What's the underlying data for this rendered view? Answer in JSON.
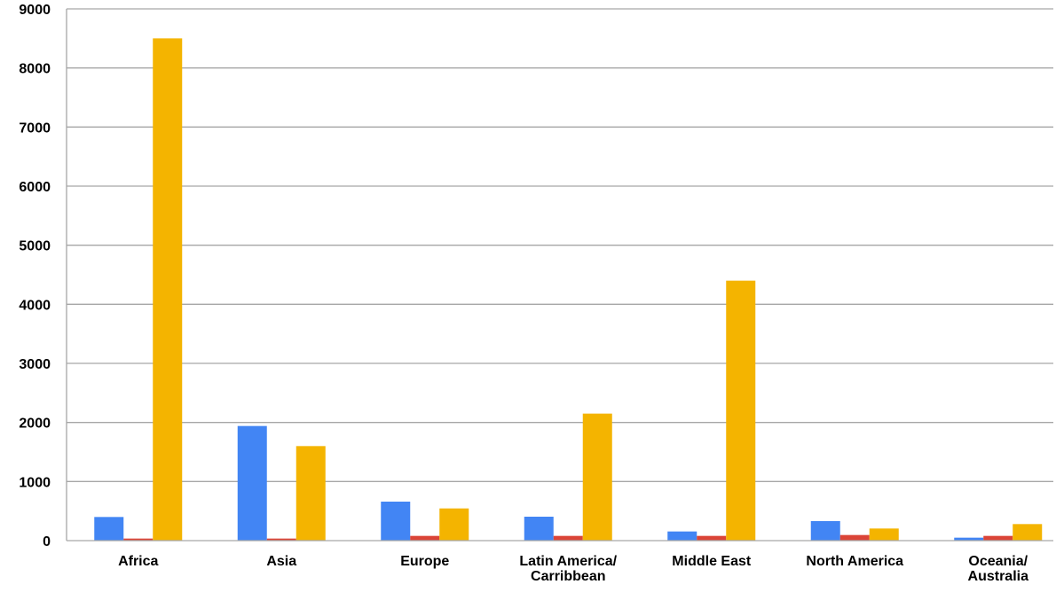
{
  "chart_data": {
    "type": "bar",
    "title": "",
    "xlabel": "",
    "ylabel": "",
    "ylim": [
      0,
      9000
    ],
    "yticks": [
      0,
      1000,
      2000,
      3000,
      4000,
      5000,
      6000,
      7000,
      8000,
      9000
    ],
    "grid": true,
    "legend": "none",
    "categories": [
      [
        "Africa"
      ],
      [
        "Asia"
      ],
      [
        "Europe"
      ],
      [
        "Latin America/",
        "Carribbean"
      ],
      [
        "Middle East"
      ],
      [
        "North America"
      ],
      [
        "Oceania/",
        "Australia"
      ]
    ],
    "series": [
      {
        "color": "#4285f4",
        "values": [
          400,
          1940,
          660,
          405,
          155,
          330,
          50
        ]
      },
      {
        "color": "#db4437",
        "values": [
          35,
          35,
          80,
          80,
          80,
          95,
          80
        ]
      },
      {
        "color": "#f4b400",
        "values": [
          8500,
          1600,
          545,
          2150,
          4400,
          205,
          280
        ]
      }
    ]
  },
  "colors": {
    "grid": "#a6a6a6",
    "axis": "#a6a6a6"
  }
}
